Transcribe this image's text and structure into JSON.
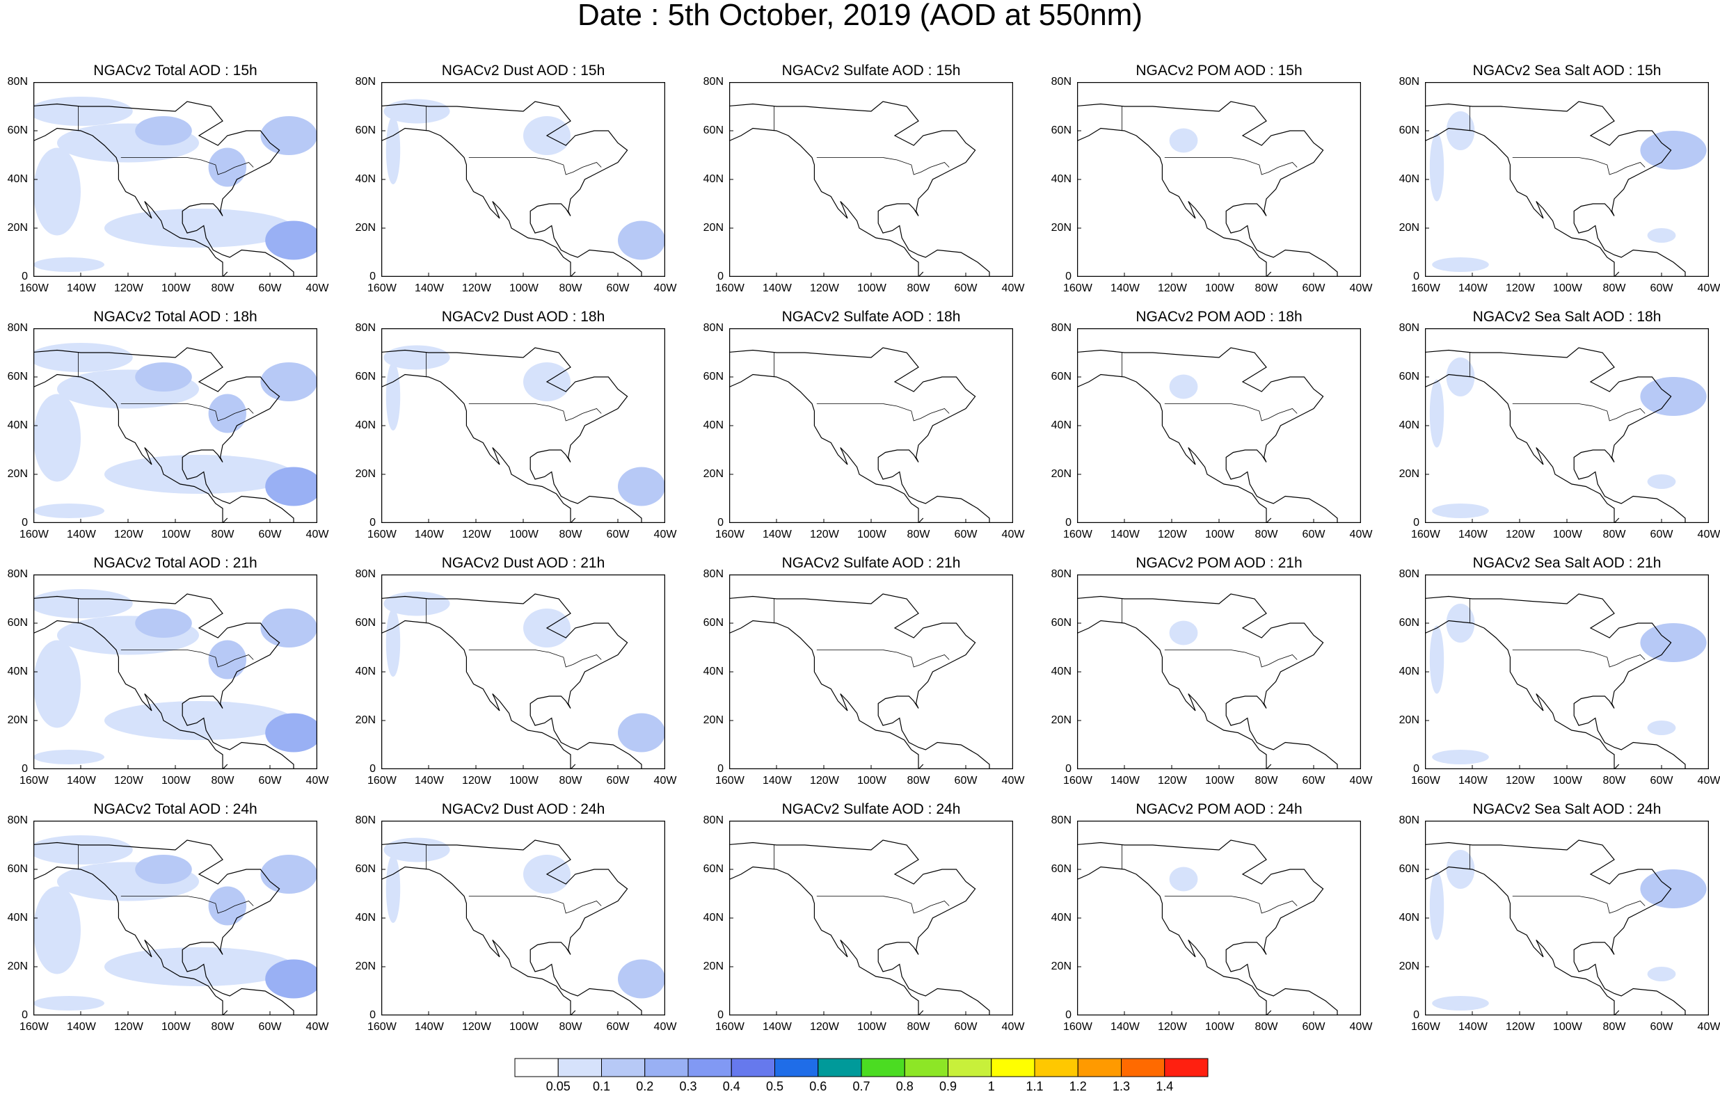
{
  "figure_title": "Date : 5th October, 2019 (AOD at 550nm)",
  "x_ticks": [
    "160W",
    "140W",
    "120W",
    "100W",
    "80W",
    "60W",
    "40W"
  ],
  "y_ticks": [
    "80N",
    "60N",
    "40N",
    "20N",
    "0"
  ],
  "lon_range": [
    -160,
    -40
  ],
  "lat_range": [
    0,
    80
  ],
  "rows": [
    {
      "hour": "15h",
      "panels": [
        {
          "title": "NGACv2 Total AOD : 15h",
          "field": "total"
        },
        {
          "title": "NGACv2 Dust AOD : 15h",
          "field": "dust"
        },
        {
          "title": "NGACv2 Sulfate AOD : 15h",
          "field": "sulfate"
        },
        {
          "title": "NGACv2 POM AOD : 15h",
          "field": "pom"
        },
        {
          "title": "NGACv2 Sea Salt AOD : 15h",
          "field": "seasalt"
        }
      ]
    },
    {
      "hour": "18h",
      "panels": [
        {
          "title": "NGACv2 Total AOD : 18h",
          "field": "total"
        },
        {
          "title": "NGACv2 Dust AOD : 18h",
          "field": "dust"
        },
        {
          "title": "NGACv2 Sulfate AOD : 18h",
          "field": "sulfate"
        },
        {
          "title": "NGACv2 POM AOD : 18h",
          "field": "pom"
        },
        {
          "title": "NGACv2 Sea Salt AOD : 18h",
          "field": "seasalt"
        }
      ]
    },
    {
      "hour": "21h",
      "panels": [
        {
          "title": "NGACv2 Total AOD : 21h",
          "field": "total"
        },
        {
          "title": "NGACv2 Dust AOD : 21h",
          "field": "dust"
        },
        {
          "title": "NGACv2 Sulfate AOD : 21h",
          "field": "sulfate"
        },
        {
          "title": "NGACv2 POM AOD : 21h",
          "field": "pom"
        },
        {
          "title": "NGACv2 Sea Salt AOD : 21h",
          "field": "seasalt"
        }
      ]
    },
    {
      "hour": "24h",
      "panels": [
        {
          "title": "NGACv2 Total AOD : 24h",
          "field": "total"
        },
        {
          "title": "NGACv2 Dust AOD : 24h",
          "field": "dust"
        },
        {
          "title": "NGACv2 Sulfate AOD : 24h",
          "field": "sulfate"
        },
        {
          "title": "NGACv2 POM AOD : 24h",
          "field": "pom"
        },
        {
          "title": "NGACv2 Sea Salt  AOD : 24h",
          "field": "seasalt"
        }
      ]
    }
  ],
  "aerosol_regions": {
    "total": [
      {
        "lat": 68,
        "lon": -140,
        "rlat": 6,
        "rlon": 22,
        "level": 1
      },
      {
        "lat": 55,
        "lon": -120,
        "rlat": 8,
        "rlon": 30,
        "level": 1
      },
      {
        "lat": 60,
        "lon": -105,
        "rlat": 6,
        "rlon": 12,
        "level": 2
      },
      {
        "lat": 58,
        "lon": -52,
        "rlat": 8,
        "rlon": 12,
        "level": 2
      },
      {
        "lat": 45,
        "lon": -78,
        "rlat": 8,
        "rlon": 8,
        "level": 2
      },
      {
        "lat": 35,
        "lon": -150,
        "rlat": 18,
        "rlon": 10,
        "level": 1
      },
      {
        "lat": 20,
        "lon": -90,
        "rlat": 8,
        "rlon": 40,
        "level": 1
      },
      {
        "lat": 15,
        "lon": -50,
        "rlat": 8,
        "rlon": 12,
        "level": 3
      },
      {
        "lat": 5,
        "lon": -145,
        "rlat": 3,
        "rlon": 15,
        "level": 1
      }
    ],
    "dust": [
      {
        "lat": 68,
        "lon": -145,
        "rlat": 5,
        "rlon": 14,
        "level": 1
      },
      {
        "lat": 52,
        "lon": -155,
        "rlat": 14,
        "rlon": 3,
        "level": 1
      },
      {
        "lat": 58,
        "lon": -90,
        "rlat": 8,
        "rlon": 10,
        "level": 1
      },
      {
        "lat": 15,
        "lon": -50,
        "rlat": 8,
        "rlon": 10,
        "level": 2
      }
    ],
    "sulfate": [],
    "pom": [
      {
        "lat": 56,
        "lon": -115,
        "rlat": 5,
        "rlon": 6,
        "level": 1
      }
    ],
    "seasalt": [
      {
        "lat": 60,
        "lon": -145,
        "rlat": 8,
        "rlon": 6,
        "level": 1
      },
      {
        "lat": 45,
        "lon": -155,
        "rlat": 14,
        "rlon": 3,
        "level": 1
      },
      {
        "lat": 52,
        "lon": -55,
        "rlat": 8,
        "rlon": 14,
        "level": 2
      },
      {
        "lat": 17,
        "lon": -60,
        "rlat": 3,
        "rlon": 6,
        "level": 1
      },
      {
        "lat": 5,
        "lon": -145,
        "rlat": 3,
        "rlon": 12,
        "level": 1
      }
    ]
  },
  "colorbar": {
    "labels": [
      "0.05",
      "0.1",
      "0.2",
      "0.3",
      "0.4",
      "0.5",
      "0.6",
      "0.7",
      "0.8",
      "0.9",
      "1",
      "1.1",
      "1.2",
      "1.3",
      "1.4"
    ],
    "colors": [
      "#ffffff",
      "#d6e2fb",
      "#b7c9f6",
      "#99b0f4",
      "#8199f4",
      "#6679ed",
      "#1f6de8",
      "#009a9a",
      "#4bdc22",
      "#8de626",
      "#c8f03a",
      "#ffff00",
      "#ffc800",
      "#ff9a00",
      "#ff6a00",
      "#ff2010"
    ]
  }
}
